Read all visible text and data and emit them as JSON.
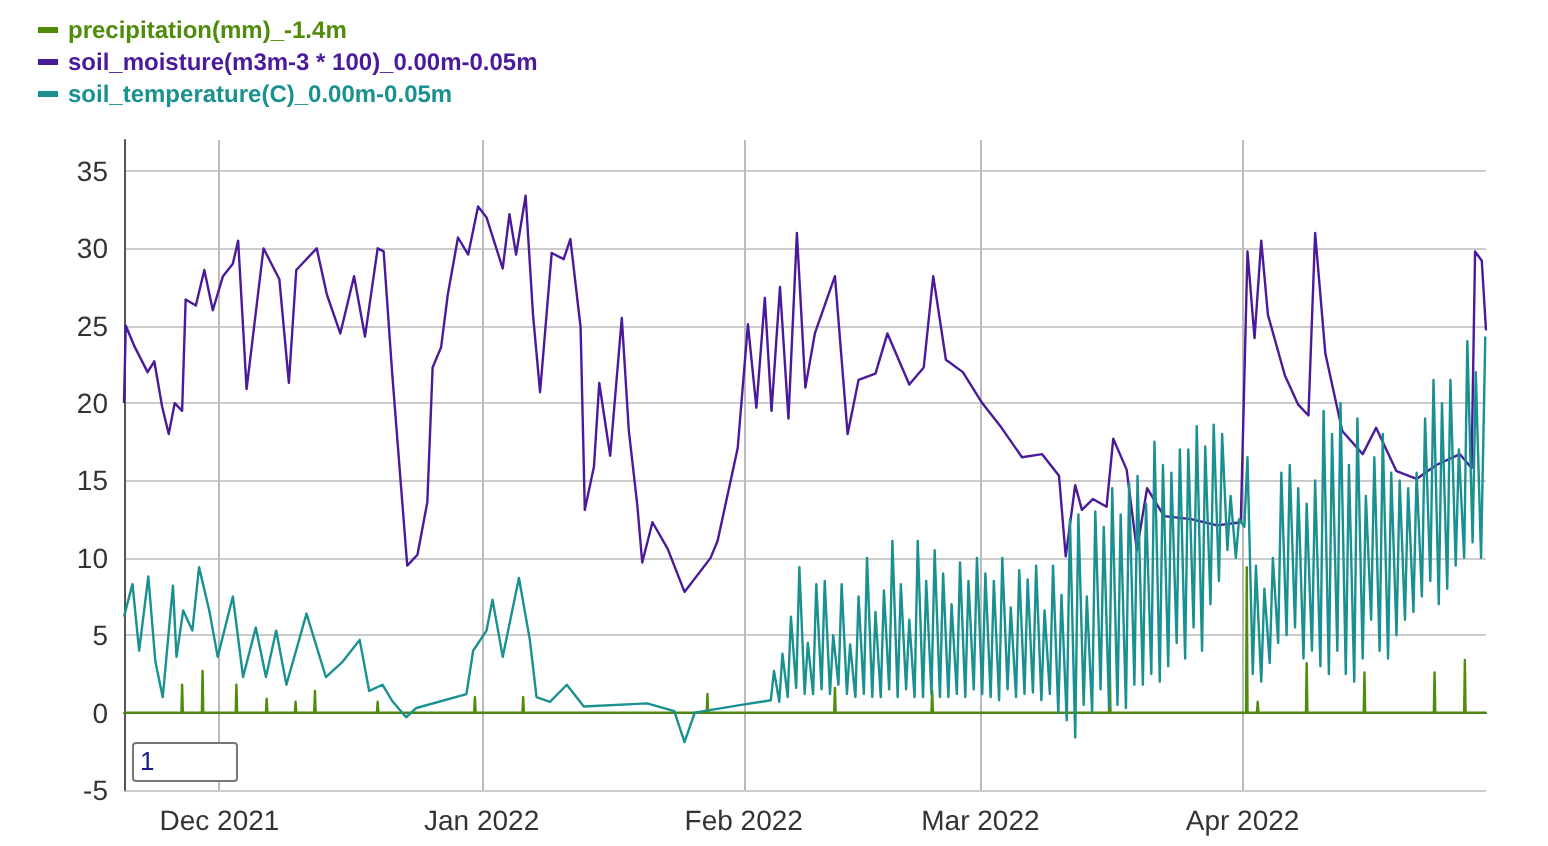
{
  "chart_data": {
    "type": "line",
    "legend": "top left",
    "grid": true,
    "xlim": [
      "2021-11-19T17:00",
      "2022-04-29T19:00"
    ],
    "xticks": [
      {
        "value": "2021-12-01",
        "label": "Dec 2021"
      },
      {
        "value": "2022-01-01",
        "label": "Jan 2022"
      },
      {
        "value": "2022-02-01",
        "label": "Feb 2022"
      },
      {
        "value": "2022-03-01",
        "label": "Mar 2022"
      },
      {
        "value": "2022-04-01",
        "label": "Apr 2022"
      }
    ],
    "ylim": [
      -5,
      37
    ],
    "yticks": [
      -5,
      0,
      5,
      10,
      15,
      20,
      25,
      30,
      35
    ],
    "annotations": [
      "1"
    ],
    "series": [
      {
        "name": "precipitation(mm)_-1.4m",
        "color": "#4e8c0a",
        "x": [
          "2021-11-19T17:00",
          "2021-11-26T12:00",
          "2021-11-26T14:00",
          "2021-11-26T16:00",
          "2021-11-28T22:00",
          "2021-11-29T00:00",
          "2021-11-29T02:00",
          "2021-12-02T22:00",
          "2021-12-03T00:00",
          "2021-12-03T02:00",
          "2021-12-06T12:00",
          "2021-12-06T14:00",
          "2021-12-06T16:00",
          "2021-12-09T22:00",
          "2021-12-10T00:00",
          "2021-12-10T02:00",
          "2021-12-12T05:00",
          "2021-12-12T07:00",
          "2021-12-12T09:00",
          "2021-12-19T15:00",
          "2021-12-19T17:00",
          "2021-12-19T19:00",
          "2021-12-31T03:00",
          "2021-12-31T05:00",
          "2021-12-31T07:00",
          "2022-01-05T20:00",
          "2022-01-05T22:00",
          "2022-01-06T00:00",
          "2022-01-27T15:00",
          "2022-01-27T17:00",
          "2022-01-27T19:00",
          "2022-02-11T17:00",
          "2022-02-11T19:00",
          "2022-02-11T21:00",
          "2022-02-23T05:00",
          "2022-02-23T07:00",
          "2022-02-23T09:00",
          "2022-03-16T05:00",
          "2022-03-16T07:00",
          "2022-03-16T09:00",
          "2022-04-01T10:00",
          "2022-04-01T12:00",
          "2022-04-01T14:00",
          "2022-04-02T17:00",
          "2022-04-02T19:00",
          "2022-04-02T21:00",
          "2022-04-08T12:00",
          "2022-04-08T14:00",
          "2022-04-08T16:00",
          "2022-04-15T08:00",
          "2022-04-15T10:00",
          "2022-04-15T12:00",
          "2022-04-23T15:00",
          "2022-04-23T17:00",
          "2022-04-23T19:00",
          "2022-04-27T05:00",
          "2022-04-27T07:00",
          "2022-04-27T09:00",
          "2022-04-29T19:00"
        ],
        "values": [
          0,
          0,
          1.8,
          0,
          0,
          2.7,
          0,
          0,
          1.8,
          0,
          0,
          0.9,
          0,
          0,
          0.7,
          0,
          0,
          1.4,
          0,
          0,
          0.7,
          0,
          0,
          1,
          0,
          0,
          1,
          0,
          0,
          1.2,
          0,
          0,
          1.6,
          0,
          0,
          1.4,
          0,
          0,
          3.6,
          0,
          0,
          9.4,
          0,
          0,
          0.7,
          0,
          0,
          3.2,
          0,
          0,
          2.6,
          0,
          0,
          2.6,
          0,
          0,
          3.4,
          0,
          0
        ]
      },
      {
        "name": "soil_moisture(m3m-3 * 100)_0.00m-0.05m",
        "color": "#4b1a9a",
        "x": [
          "2021-11-19T17:00",
          "2021-11-19T22:00",
          "2021-11-20T22:00",
          "2021-11-22T12:00",
          "2021-11-23T07:00",
          "2021-11-24T05:00",
          "2021-11-25T00:00",
          "2021-11-25T17:00",
          "2021-11-26T14:00",
          "2021-11-27T00:00",
          "2021-11-28T05:00",
          "2021-11-29T05:00",
          "2021-11-30T05:00",
          "2021-12-01T10:00",
          "2021-12-02T14:00",
          "2021-12-03T05:00",
          "2021-12-04T05:00",
          "2021-12-05T00:00",
          "2021-12-06T05:00",
          "2021-12-08T02:00",
          "2021-12-09T05:00",
          "2021-12-10T02:00",
          "2021-12-12T12:00",
          "2021-12-13T17:00",
          "2021-12-15T07:00",
          "2021-12-16T22:00",
          "2021-12-18T05:00",
          "2021-12-19T17:00",
          "2021-12-20T10:00",
          "2021-12-21T10:00",
          "2021-12-22T10:00",
          "2021-12-23T05:00",
          "2021-12-24T10:00",
          "2021-12-25T14:00",
          "2021-12-26T05:00",
          "2021-12-27T05:00",
          "2021-12-28T00:00",
          "2021-12-29T05:00",
          "2021-12-30T10:00",
          "2021-12-31T14:00",
          "2022-01-01T14:00",
          "2022-01-03T12:00",
          "2022-01-04T07:00",
          "2022-01-05T02:00",
          "2022-01-06T05:00",
          "2022-01-07T02:00",
          "2022-01-07T22:00",
          "2022-01-09T07:00",
          "2022-01-10T17:00",
          "2022-01-11T12:00",
          "2022-01-12T17:00",
          "2022-01-13T05:00",
          "2022-01-14T07:00",
          "2022-01-14T22:00",
          "2022-01-16T05:00",
          "2022-01-17T14:00",
          "2022-01-18T10:00",
          "2022-01-19T10:00",
          "2022-01-20T00:00",
          "2022-01-21T05:00",
          "2022-01-23T00:00",
          "2022-01-25T00:00",
          "2022-01-28T02:00",
          "2022-01-28T22:00",
          "2022-01-31T07:00",
          "2022-02-01T12:00",
          "2022-02-02T12:00",
          "2022-02-03T12:00",
          "2022-02-04T07:00",
          "2022-02-05T07:00",
          "2022-02-06T07:00",
          "2022-02-07T07:00",
          "2022-02-08T07:00",
          "2022-02-09T10:00",
          "2022-02-11T19:00",
          "2022-02-13T07:00",
          "2022-02-14T14:00",
          "2022-02-16T14:00",
          "2022-02-18T00:00",
          "2022-02-20T14:00",
          "2022-02-22T07:00",
          "2022-02-23T10:00",
          "2022-02-24T22:00",
          "2022-02-26T22:00",
          "2022-03-01T05:00",
          "2022-03-03T12:00",
          "2022-03-05T22:00",
          "2022-03-08T07:00",
          "2022-03-10T07:00",
          "2022-03-11T02:00",
          "2022-03-12T05:00",
          "2022-03-13T00:00",
          "2022-03-14T07:00",
          "2022-03-15T22:00",
          "2022-03-16T17:00",
          "2022-03-18T07:00",
          "2022-03-19T12:00",
          "2022-03-20T17:00",
          "2022-03-22T17:00",
          "2022-03-25T22:00",
          "2022-03-29T00:00",
          "2022-03-31T19:00",
          "2022-04-01T14:00",
          "2022-04-02T10:00",
          "2022-04-03T05:00",
          "2022-04-04T00:00",
          "2022-04-06T00:00",
          "2022-04-07T14:00",
          "2022-04-08T19:00",
          "2022-04-09T14:00",
          "2022-04-10T19:00",
          "2022-04-12T19:00",
          "2022-04-15T05:00",
          "2022-04-16T19:00",
          "2022-04-19T05:00",
          "2022-04-21T14:00",
          "2022-04-23T22:00",
          "2022-04-26T17:00",
          "2022-04-28T02:00",
          "2022-04-28T12:00",
          "2022-04-29T07:00",
          "2022-04-29T19:00"
        ],
        "values": [
          20,
          25,
          23.7,
          22,
          22.7,
          19.8,
          18,
          20,
          19.5,
          26.7,
          26.3,
          28.6,
          26,
          28.2,
          29,
          30.5,
          20.9,
          24.5,
          30,
          28,
          21.3,
          28.6,
          30,
          27,
          24.5,
          28.2,
          24.3,
          30,
          29.8,
          22,
          15,
          9.5,
          10.2,
          13.6,
          22.3,
          23.6,
          27,
          30.7,
          29.6,
          32.7,
          32,
          28.7,
          32.2,
          29.6,
          33.4,
          25.7,
          20.7,
          29.7,
          29.3,
          30.6,
          24.9,
          13.1,
          15.9,
          21.3,
          16.6,
          25.5,
          18.2,
          13.4,
          9.7,
          12.3,
          10.6,
          7.8,
          10,
          11.1,
          17.1,
          25.1,
          19.7,
          26.8,
          19.5,
          27.5,
          19,
          31,
          21,
          24.5,
          28.2,
          18,
          21.5,
          21.9,
          24.5,
          21.2,
          22.3,
          28.2,
          22.8,
          22,
          20,
          18.4,
          16.5,
          16.7,
          15.3,
          10.1,
          14.7,
          13.1,
          13.8,
          13.3,
          17.7,
          15.7,
          10.5,
          14.5,
          12.7,
          12.5,
          12.1,
          12.3,
          29.8,
          24.2,
          30.5,
          25.7,
          21.8,
          19.9,
          19.2,
          31,
          23.2,
          18.2,
          16.7,
          18.4,
          15.6,
          15.1,
          16,
          16.7,
          15.8,
          29.8,
          29.2,
          24.7
        ]
      },
      {
        "name": "soil_temperature(C)_0.00m-0.05m",
        "color": "#1a9090",
        "x": [
          "2021-11-19T17:00",
          "2021-11-20T17:00",
          "2021-11-21T12:00",
          "2021-11-22T14:00",
          "2021-11-23T10:00",
          "2021-11-24T07:00",
          "2021-11-25T12:00",
          "2021-11-25T22:00",
          "2021-11-26T17:00",
          "2021-11-27T19:00",
          "2021-11-28T14:00",
          "2021-11-29T19:00",
          "2021-11-30T19:00",
          "2021-12-02T14:00",
          "2021-12-03T19:00",
          "2021-12-05T07:00",
          "2021-12-06T12:00",
          "2021-12-07T17:00",
          "2021-12-08T22:00",
          "2021-12-11T07:00",
          "2021-12-13T14:00",
          "2021-12-15T14:00",
          "2021-12-17T14:00",
          "2021-12-18T17:00",
          "2021-12-20T07:00",
          "2021-12-21T12:00",
          "2021-12-23T02:00",
          "2021-12-24T07:00",
          "2021-12-30T05:00",
          "2021-12-31T00:00",
          "2022-01-01T14:00",
          "2022-01-02T07:00",
          "2022-01-03T12:00",
          "2022-01-05T10:00",
          "2022-01-06T17:00",
          "2022-01-07T12:00",
          "2022-01-09T02:00",
          "2022-01-11T02:00",
          "2022-01-13T02:00",
          "2022-01-20T14:00",
          "2022-01-23T19:00",
          "2022-01-25T00:00",
          "2022-01-26T05:00",
          "2022-01-31T17:00",
          "2022-02-03T02:00",
          "2022-02-04T05:00",
          "2022-02-04T14:00",
          "2022-02-05T05:00",
          "2022-02-05T14:00",
          "2022-02-06T05:00",
          "2022-02-06T14:00",
          "2022-02-07T05:00",
          "2022-02-07T14:00",
          "2022-02-08T05:00",
          "2022-02-08T14:00",
          "2022-02-09T05:00",
          "2022-02-09T14:00",
          "2022-02-10T05:00",
          "2022-02-10T14:00",
          "2022-02-11T05:00",
          "2022-02-11T14:00",
          "2022-02-12T05:00",
          "2022-02-12T14:00",
          "2022-02-13T05:00",
          "2022-02-13T14:00",
          "2022-02-14T05:00",
          "2022-02-14T14:00",
          "2022-02-15T05:00",
          "2022-02-15T14:00",
          "2022-02-16T05:00",
          "2022-02-16T14:00",
          "2022-02-17T05:00",
          "2022-02-17T14:00",
          "2022-02-18T05:00",
          "2022-02-18T14:00",
          "2022-02-19T05:00",
          "2022-02-19T14:00",
          "2022-02-20T05:00",
          "2022-02-20T14:00",
          "2022-02-21T05:00",
          "2022-02-21T14:00",
          "2022-02-22T05:00",
          "2022-02-22T14:00",
          "2022-02-23T05:00",
          "2022-02-23T14:00",
          "2022-02-24T05:00",
          "2022-02-24T14:00",
          "2022-02-25T05:00",
          "2022-02-25T14:00",
          "2022-02-26T05:00",
          "2022-02-26T14:00",
          "2022-02-27T05:00",
          "2022-02-27T14:00",
          "2022-02-28T05:00",
          "2022-02-28T14:00",
          "2022-03-01T05:00",
          "2022-03-01T14:00",
          "2022-03-02T05:00",
          "2022-03-02T14:00",
          "2022-03-03T05:00",
          "2022-03-03T14:00",
          "2022-03-04T05:00",
          "2022-03-04T14:00",
          "2022-03-05T05:00",
          "2022-03-05T14:00",
          "2022-03-06T05:00",
          "2022-03-06T14:00",
          "2022-03-07T05:00",
          "2022-03-07T14:00",
          "2022-03-08T05:00",
          "2022-03-08T14:00",
          "2022-03-09T05:00",
          "2022-03-09T14:00",
          "2022-03-10T05:00",
          "2022-03-10T14:00",
          "2022-03-11T05:00",
          "2022-03-11T14:00",
          "2022-03-12T05:00",
          "2022-03-12T14:00",
          "2022-03-13T05:00",
          "2022-03-13T14:00",
          "2022-03-14T05:00",
          "2022-03-14T14:00",
          "2022-03-15T05:00",
          "2022-03-15T14:00",
          "2022-03-16T05:00",
          "2022-03-16T14:00",
          "2022-03-17T05:00",
          "2022-03-17T14:00",
          "2022-03-18T05:00",
          "2022-03-18T14:00",
          "2022-03-19T05:00",
          "2022-03-19T14:00",
          "2022-03-20T05:00",
          "2022-03-20T14:00",
          "2022-03-21T05:00",
          "2022-03-21T14:00",
          "2022-03-22T05:00",
          "2022-03-22T14:00",
          "2022-03-23T05:00",
          "2022-03-23T14:00",
          "2022-03-24T05:00",
          "2022-03-24T14:00",
          "2022-03-25T05:00",
          "2022-03-25T14:00",
          "2022-03-26T05:00",
          "2022-03-26T14:00",
          "2022-03-27T05:00",
          "2022-03-27T14:00",
          "2022-03-28T05:00",
          "2022-03-28T14:00",
          "2022-03-29T05:00",
          "2022-03-29T14:00",
          "2022-03-30T05:00",
          "2022-03-30T14:00",
          "2022-03-31T05:00",
          "2022-03-31T14:00",
          "2022-04-01T05:00",
          "2022-04-01T14:00",
          "2022-04-02T05:00",
          "2022-04-02T14:00",
          "2022-04-03T05:00",
          "2022-04-03T14:00",
          "2022-04-04T05:00",
          "2022-04-04T14:00",
          "2022-04-05T05:00",
          "2022-04-05T14:00",
          "2022-04-06T05:00",
          "2022-04-06T14:00",
          "2022-04-07T05:00",
          "2022-04-07T14:00",
          "2022-04-08T05:00",
          "2022-04-08T14:00",
          "2022-04-09T05:00",
          "2022-04-09T14:00",
          "2022-04-10T05:00",
          "2022-04-10T14:00",
          "2022-04-11T05:00",
          "2022-04-11T14:00",
          "2022-04-12T05:00",
          "2022-04-12T14:00",
          "2022-04-13T05:00",
          "2022-04-13T14:00",
          "2022-04-14T05:00",
          "2022-04-14T14:00",
          "2022-04-15T05:00",
          "2022-04-15T14:00",
          "2022-04-16T05:00",
          "2022-04-16T14:00",
          "2022-04-17T05:00",
          "2022-04-17T14:00",
          "2022-04-18T05:00",
          "2022-04-18T14:00",
          "2022-04-19T05:00",
          "2022-04-19T14:00",
          "2022-04-20T05:00",
          "2022-04-20T14:00",
          "2022-04-21T05:00",
          "2022-04-21T14:00",
          "2022-04-22T05:00",
          "2022-04-22T14:00",
          "2022-04-23T05:00",
          "2022-04-23T14:00",
          "2022-04-24T05:00",
          "2022-04-24T14:00",
          "2022-04-25T05:00",
          "2022-04-25T14:00",
          "2022-04-26T05:00",
          "2022-04-26T14:00",
          "2022-04-27T05:00",
          "2022-04-27T14:00",
          "2022-04-28T05:00",
          "2022-04-28T14:00",
          "2022-04-29T05:00",
          "2022-04-29T17:00"
        ],
        "values": [
          6.2,
          8.3,
          4,
          8.8,
          3.3,
          1,
          8.2,
          3.6,
          6.6,
          5.3,
          9.4,
          6.6,
          3.6,
          7.5,
          2.3,
          5.5,
          2.3,
          5.3,
          1.8,
          6.4,
          2.3,
          3.3,
          4.7,
          1.4,
          1.8,
          0.7,
          -0.3,
          0.3,
          1.2,
          4,
          5.3,
          7.3,
          3.6,
          8.7,
          4.7,
          1,
          0.7,
          1.8,
          0.4,
          0.6,
          0.1,
          -1.9,
          0,
          0.5,
          0.7,
          0.8,
          2.7,
          0.7,
          3.8,
          1,
          6.2,
          1.6,
          9.4,
          1.2,
          4.5,
          1.2,
          8.3,
          1.5,
          8.5,
          1.2,
          5,
          1.8,
          8.3,
          1.2,
          4.4,
          1,
          7.5,
          1.2,
          10,
          1,
          6.5,
          1,
          7.9,
          1.5,
          11.1,
          1,
          8.3,
          1.5,
          6,
          1,
          11.1,
          1,
          8.5,
          1.2,
          10.5,
          1,
          9,
          1,
          7,
          1.2,
          9.7,
          1,
          8.5,
          1.5,
          10,
          1.2,
          9,
          1,
          8.5,
          0.8,
          10,
          1.5,
          6.8,
          1,
          9.2,
          1.2,
          8.6,
          1.3,
          9.5,
          0.8,
          6.6,
          1.2,
          9.5,
          0,
          7.6,
          -0.5,
          12.5,
          -1.6,
          12.8,
          0.5,
          7.5,
          0,
          13,
          1.5,
          12,
          0.3,
          14.5,
          0.5,
          12.8,
          0.3,
          14.8,
          1.8,
          15.3,
          1.8,
          13.5,
          2.5,
          17.5,
          2,
          16,
          3,
          15.5,
          4.5,
          17,
          3.5,
          17,
          5.5,
          18.5,
          4,
          17.2,
          7,
          18.6,
          8.5,
          18,
          10.5,
          14,
          10,
          12.5,
          12,
          16.5,
          2.5,
          9.5,
          2,
          8,
          3.2,
          10,
          4.5,
          15.5,
          5,
          16,
          5.5,
          14.5,
          3.5,
          13.5,
          4,
          15,
          3,
          19.5,
          2.5,
          18,
          4,
          20,
          2.5,
          16,
          2,
          19,
          3.5,
          14,
          6,
          16.5,
          4,
          18,
          3.5,
          15.5,
          5,
          15,
          6,
          14.5,
          6.5,
          15.5,
          7.5,
          19,
          8.5,
          21.5,
          7,
          20,
          8,
          21.5,
          9.5,
          17,
          10,
          24,
          11,
          22,
          10,
          24.3
        ]
      }
    ]
  }
}
